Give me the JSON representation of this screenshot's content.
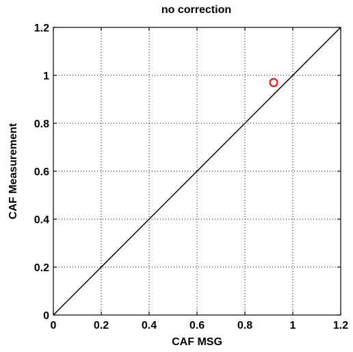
{
  "chart_data": {
    "type": "scatter",
    "title": "no correction",
    "xlabel": "CAF MSG",
    "ylabel": "CAF Measurement",
    "xlim": [
      0,
      1.2
    ],
    "ylim": [
      0,
      1.2
    ],
    "xticks": [
      "0",
      "0.2",
      "0.4",
      "0.6",
      "0.8",
      "1",
      "1.2"
    ],
    "yticks": [
      "0",
      "0.2",
      "0.4",
      "0.6",
      "0.8",
      "1",
      "1.2"
    ],
    "grid": true,
    "reference_line": {
      "x": [
        0,
        1.2
      ],
      "y": [
        0,
        1.2
      ],
      "color": "#000000"
    },
    "series": [
      {
        "marker": "circle",
        "color": "#ff0000",
        "points": [
          {
            "x": 0.92,
            "y": 0.97
          }
        ]
      }
    ]
  }
}
